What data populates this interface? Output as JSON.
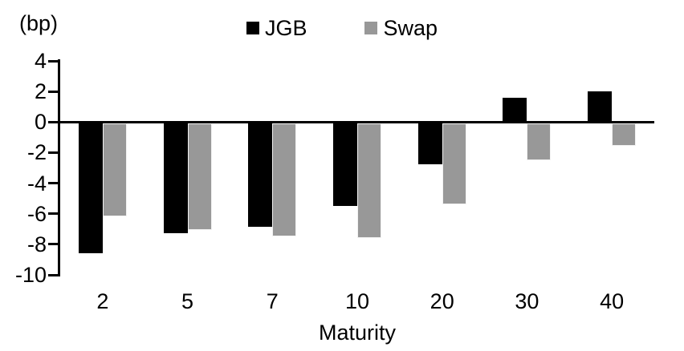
{
  "chart_data": {
    "type": "bar",
    "title": "",
    "unit_label": "(bp)",
    "xlabel": "Maturity",
    "ylabel": "",
    "categories": [
      "2",
      "5",
      "7",
      "10",
      "20",
      "30",
      "40"
    ],
    "series": [
      {
        "name": "JGB",
        "color": "#000000",
        "values": [
          -8.5,
          -7.2,
          -6.8,
          -5.4,
          -2.7,
          1.6,
          2.0
        ]
      },
      {
        "name": "Swap",
        "color": "#989898",
        "values": [
          -6.1,
          -7.0,
          -7.4,
          -7.5,
          -5.3,
          -2.4,
          -1.5
        ]
      }
    ],
    "ylim": [
      -10,
      4
    ],
    "yticks": [
      4,
      2,
      0,
      -2,
      -4,
      -6,
      -8,
      -10
    ],
    "grid": false,
    "legend_position": "top-center",
    "axis_color": "#000000",
    "background_color": "#ffffff"
  }
}
